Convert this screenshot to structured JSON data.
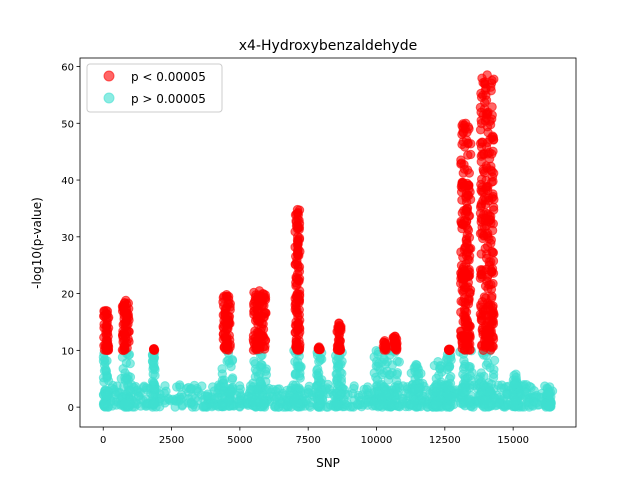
{
  "chart_data": {
    "type": "scatter",
    "title": "x4-Hydroxybenzaldehyde",
    "xlabel": "SNP",
    "ylabel": "-log10(p-value)",
    "xlim": [
      -850,
      17300
    ],
    "ylim": [
      -3.5,
      61.5
    ],
    "xticks": [
      0,
      2500,
      5000,
      7500,
      10000,
      12500,
      15000
    ],
    "xtick_labels": [
      "0",
      "2500",
      "5000",
      "7500",
      "10000",
      "12500",
      "15000"
    ],
    "yticks": [
      0,
      10,
      20,
      30,
      40,
      50,
      60
    ],
    "ytick_labels": [
      "0",
      "10",
      "20",
      "30",
      "40",
      "50",
      "60"
    ],
    "grid": false,
    "legend_position": "top-left",
    "threshold": 10,
    "colors": {
      "significant": "#ff0000",
      "nonsignificant": "#40e0d0"
    },
    "legend": [
      {
        "label": "p < 0.00005",
        "color": "#ff0000"
      },
      {
        "label": "p > 0.00005",
        "color": "#40e0d0"
      }
    ],
    "significant_peaks": [
      {
        "x_start": 0,
        "x_end": 200,
        "max": 17
      },
      {
        "x_start": 700,
        "x_end": 950,
        "max": 18.8
      },
      {
        "x_start": 1840,
        "x_end": 1880,
        "max": 10.3
      },
      {
        "x_start": 4380,
        "x_end": 4650,
        "max": 19.8
      },
      {
        "x_start": 5480,
        "x_end": 5950,
        "max": 20.5
      },
      {
        "x_start": 7020,
        "x_end": 7200,
        "max": 34.8
      },
      {
        "x_start": 7850,
        "x_end": 7950,
        "max": 10.6
      },
      {
        "x_start": 8550,
        "x_end": 8700,
        "max": 14.8
      },
      {
        "x_start": 10250,
        "x_end": 10350,
        "max": 11.7
      },
      {
        "x_start": 10600,
        "x_end": 10750,
        "max": 12.5
      },
      {
        "x_start": 12600,
        "x_end": 12700,
        "max": 10.2
      },
      {
        "x_start": 13080,
        "x_end": 13450,
        "max": 50
      },
      {
        "x_start": 13800,
        "x_end": 14300,
        "max": 58.5
      }
    ],
    "nonsignificant_regions": [
      {
        "x_start": 0,
        "x_end": 16450,
        "max": 4
      },
      {
        "x_start": 0,
        "x_end": 200,
        "max": 10
      },
      {
        "x_start": 650,
        "x_end": 1000,
        "max": 10
      },
      {
        "x_start": 1800,
        "x_end": 1900,
        "max": 9.5
      },
      {
        "x_start": 4300,
        "x_end": 4750,
        "max": 10
      },
      {
        "x_start": 5450,
        "x_end": 6000,
        "max": 10
      },
      {
        "x_start": 6950,
        "x_end": 7250,
        "max": 10
      },
      {
        "x_start": 7800,
        "x_end": 8000,
        "max": 10
      },
      {
        "x_start": 8500,
        "x_end": 8750,
        "max": 10
      },
      {
        "x_start": 9900,
        "x_end": 10900,
        "max": 10
      },
      {
        "x_start": 11200,
        "x_end": 11700,
        "max": 7.5
      },
      {
        "x_start": 12100,
        "x_end": 12400,
        "max": 8
      },
      {
        "x_start": 12550,
        "x_end": 12750,
        "max": 10
      },
      {
        "x_start": 13050,
        "x_end": 13500,
        "max": 10
      },
      {
        "x_start": 13700,
        "x_end": 14350,
        "max": 10
      },
      {
        "x_start": 15000,
        "x_end": 15200,
        "max": 5.8
      },
      {
        "x_start": 16200,
        "x_end": 16400,
        "max": 2.7
      }
    ]
  }
}
